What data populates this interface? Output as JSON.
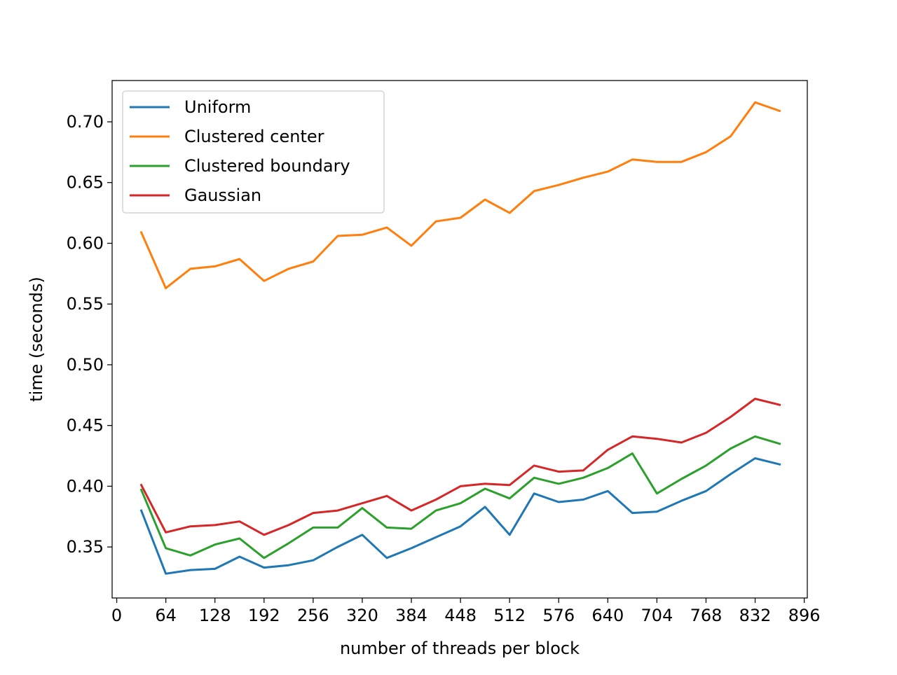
{
  "chart_data": {
    "type": "line",
    "title": "",
    "xlabel": "number of threads per block",
    "ylabel": "time (seconds)",
    "xlim": [
      -6,
      900
    ],
    "ylim": [
      0.308,
      0.734
    ],
    "xticks": [
      0,
      64,
      128,
      192,
      256,
      320,
      384,
      448,
      512,
      576,
      640,
      704,
      768,
      832,
      896
    ],
    "xtick_labels": [
      "0",
      "64",
      "128",
      "192",
      "256",
      "320",
      "384",
      "448",
      "512",
      "576",
      "640",
      "704",
      "768",
      "832",
      "896"
    ],
    "yticks": [
      0.35,
      0.4,
      0.45,
      0.5,
      0.55,
      0.6,
      0.65,
      0.7
    ],
    "ytick_labels": [
      "0.35",
      "0.40",
      "0.45",
      "0.50",
      "0.55",
      "0.60",
      "0.65",
      "0.70"
    ],
    "grid": false,
    "legend_position": "upper-left",
    "x": [
      32,
      64,
      96,
      128,
      160,
      192,
      224,
      256,
      288,
      320,
      352,
      384,
      416,
      448,
      480,
      512,
      544,
      576,
      608,
      640,
      672,
      704,
      736,
      768,
      800,
      832,
      864
    ],
    "series": [
      {
        "name": "Uniform",
        "color": "#1f77b4",
        "values": [
          0.38,
          0.328,
          0.331,
          0.332,
          0.342,
          0.333,
          0.335,
          0.339,
          0.35,
          0.36,
          0.341,
          0.349,
          0.358,
          0.367,
          0.383,
          0.36,
          0.394,
          0.387,
          0.389,
          0.396,
          0.378,
          0.379,
          0.388,
          0.396,
          0.41,
          0.423,
          0.418
        ]
      },
      {
        "name": "Clustered center",
        "color": "#ff7f0e",
        "values": [
          0.609,
          0.563,
          0.579,
          0.581,
          0.587,
          0.569,
          0.579,
          0.585,
          0.606,
          0.607,
          0.613,
          0.598,
          0.618,
          0.621,
          0.636,
          0.625,
          0.643,
          0.648,
          0.654,
          0.659,
          0.669,
          0.667,
          0.667,
          0.675,
          0.688,
          0.716,
          0.709
        ]
      },
      {
        "name": "Clustered boundary",
        "color": "#2ca02c",
        "values": [
          0.397,
          0.349,
          0.343,
          0.352,
          0.357,
          0.341,
          0.353,
          0.366,
          0.366,
          0.382,
          0.366,
          0.365,
          0.38,
          0.386,
          0.398,
          0.39,
          0.407,
          0.402,
          0.407,
          0.415,
          0.427,
          0.394,
          0.406,
          0.417,
          0.431,
          0.441,
          0.435
        ]
      },
      {
        "name": "Gaussian",
        "color": "#d62728",
        "values": [
          0.401,
          0.362,
          0.367,
          0.368,
          0.371,
          0.36,
          0.368,
          0.378,
          0.38,
          0.386,
          0.392,
          0.38,
          0.389,
          0.4,
          0.402,
          0.401,
          0.417,
          0.412,
          0.413,
          0.43,
          0.441,
          0.439,
          0.436,
          0.444,
          0.457,
          0.472,
          0.467
        ]
      }
    ]
  }
}
